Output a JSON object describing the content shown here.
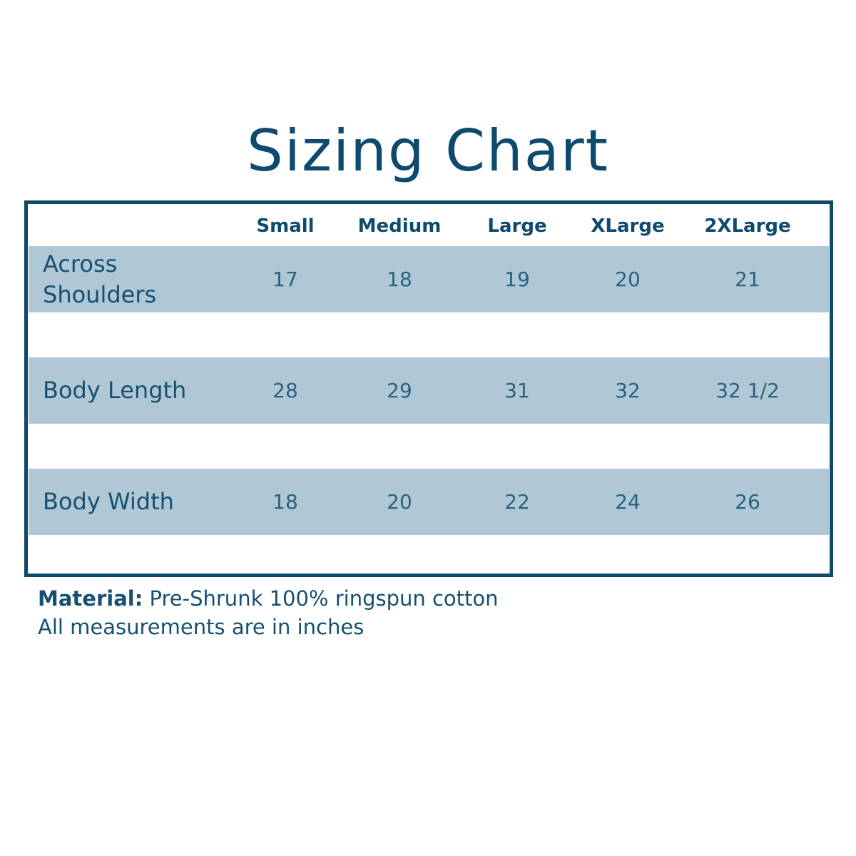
{
  "title": "Sizing Chart",
  "table": {
    "columns": [
      "Small",
      "Medium",
      "Large",
      "XLarge",
      "2XLarge"
    ],
    "rows": [
      {
        "label": "Across Shoulders",
        "values": [
          "17",
          "18",
          "19",
          "20",
          "21"
        ]
      },
      {
        "label": "Body Length",
        "values": [
          "28",
          "29",
          "31",
          "32",
          "32 1/2"
        ]
      },
      {
        "label": "Body Width",
        "values": [
          "18",
          "20",
          "22",
          "24",
          "26"
        ]
      }
    ]
  },
  "footer": {
    "material_label": "Material:",
    "material_text": "Pre-Shrunk 100% ringspun cotton",
    "note": "All measurements are in inches"
  }
}
